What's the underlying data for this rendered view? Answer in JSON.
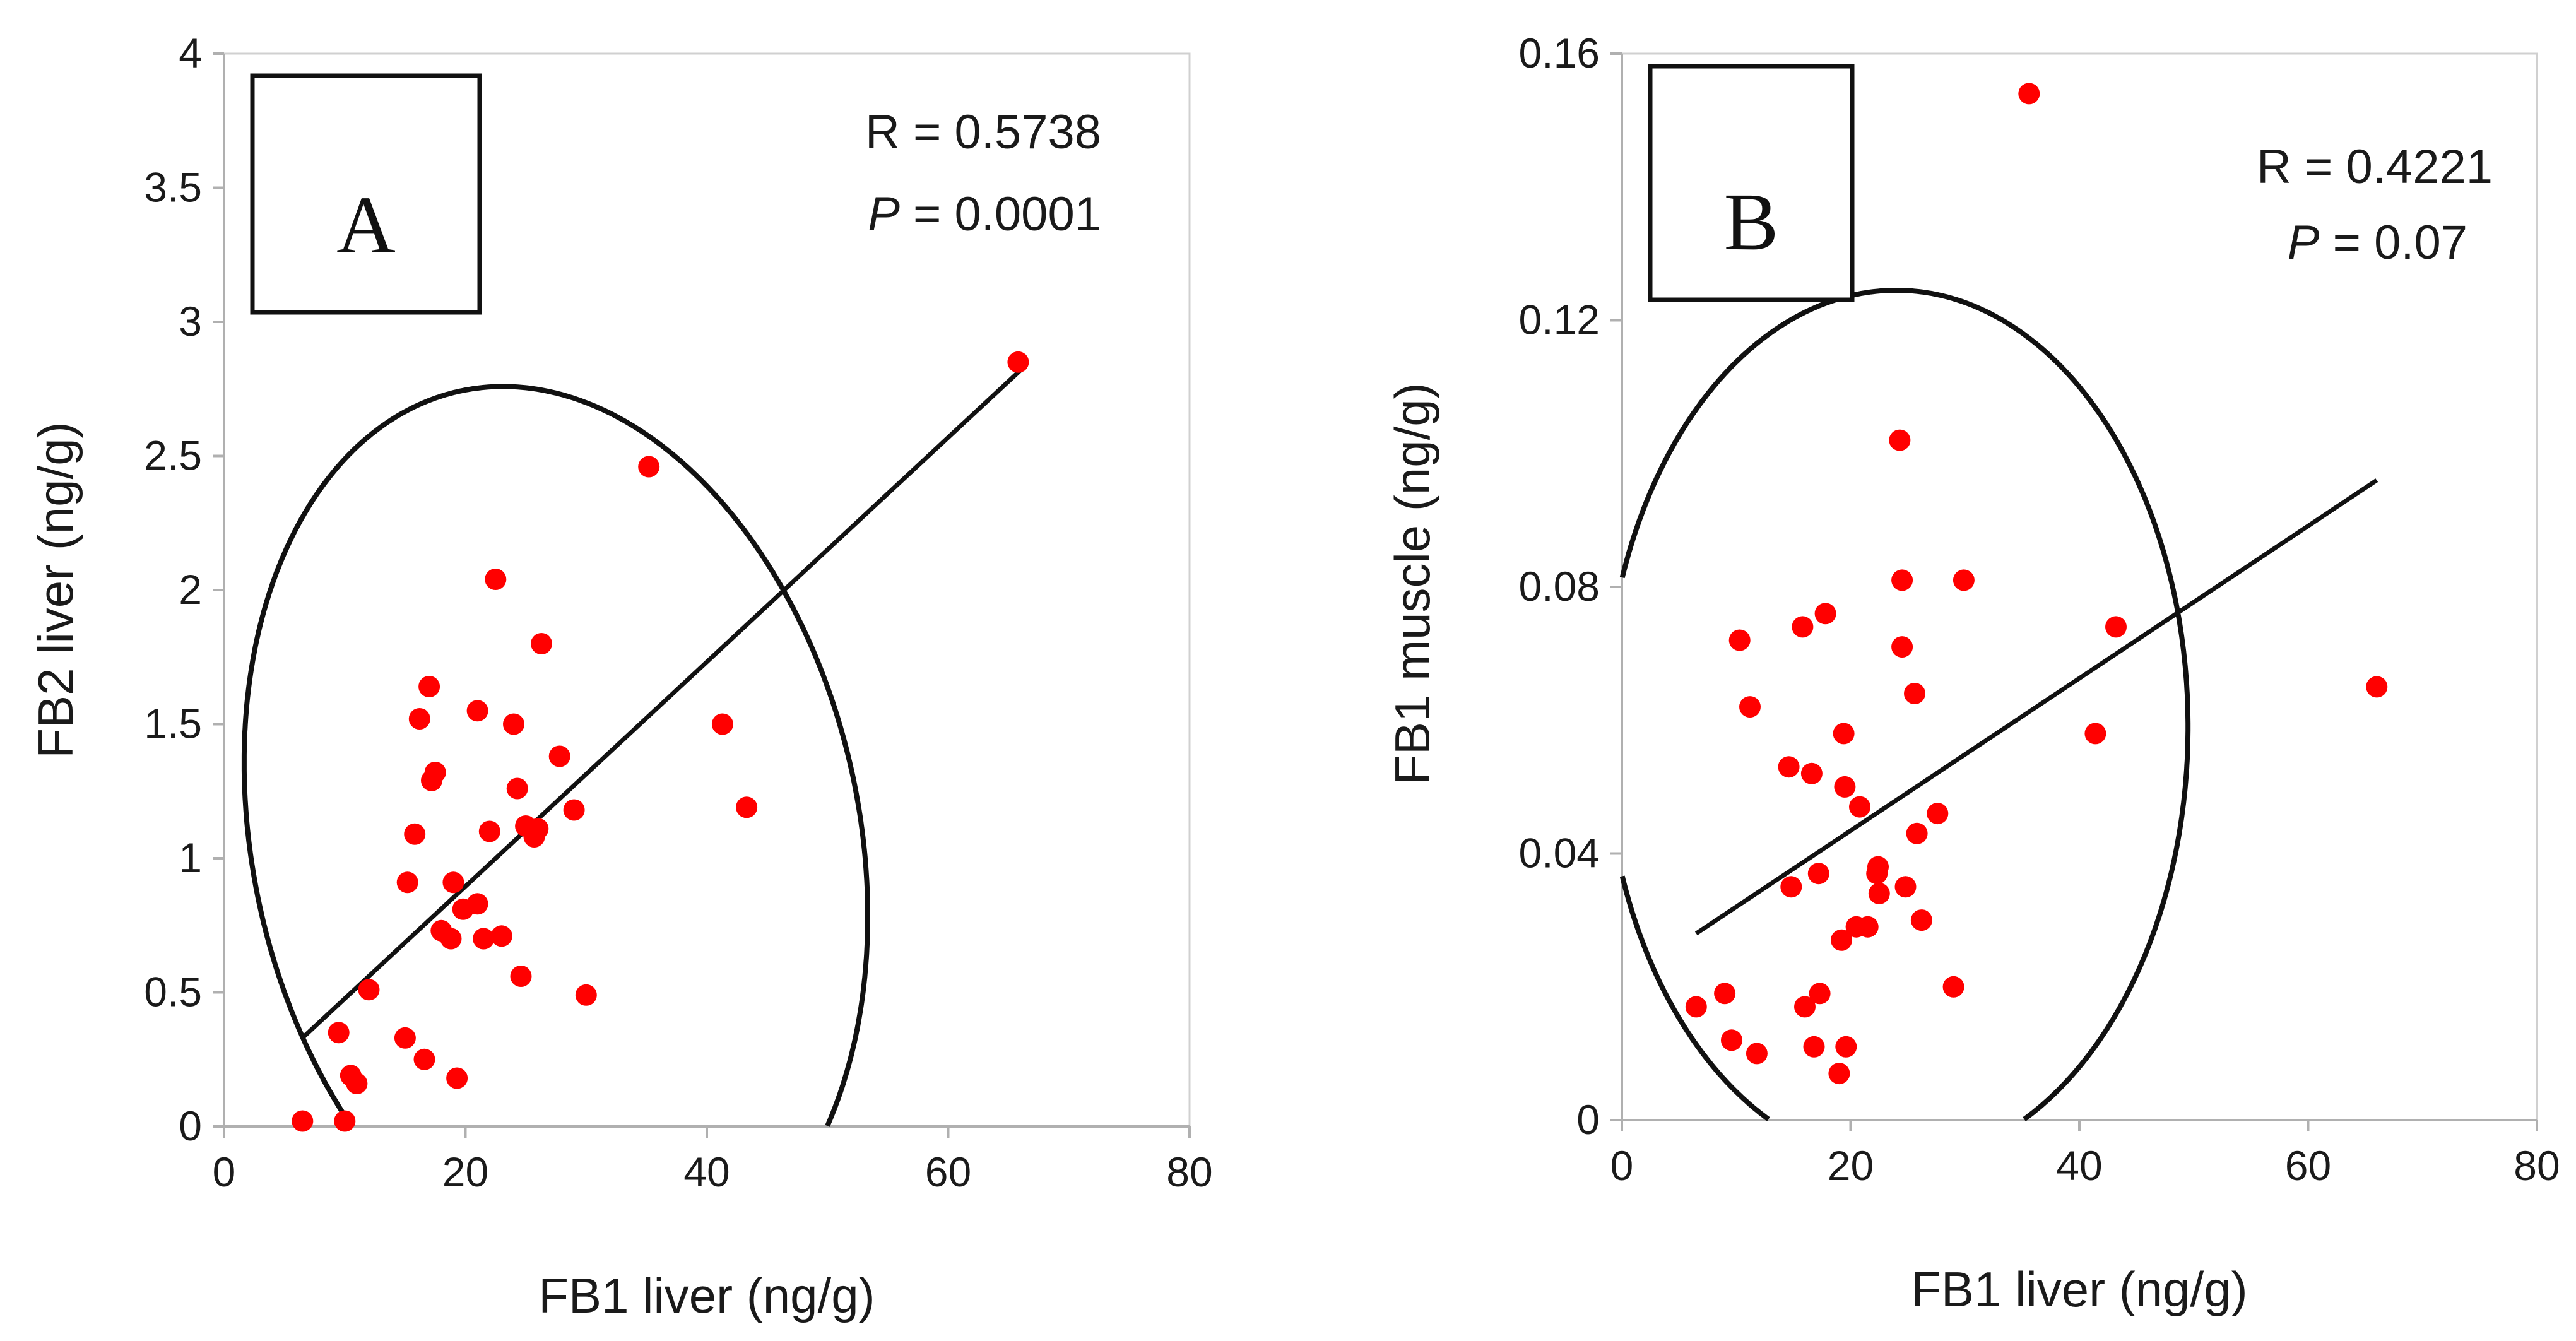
{
  "colors": {
    "point": "#ff0000",
    "line": "#111111",
    "axis": "#b0b0b0"
  },
  "chart_data": [
    {
      "panel": "A",
      "type": "scatter",
      "xlabel": "FB1 liver (ng/g)",
      "ylabel": "FB2 liver (ng/g)",
      "xlim": [
        0,
        80
      ],
      "ylim": [
        0,
        4
      ],
      "x_ticks": [
        0,
        20,
        40,
        60,
        80
      ],
      "y_ticks": [
        0,
        0.5,
        1,
        1.5,
        2,
        2.5,
        3,
        3.5,
        4
      ],
      "x_tick_labels": [
        "0",
        "20",
        "40",
        "60",
        "80"
      ],
      "y_tick_labels": [
        "0",
        "0.5",
        "1",
        "1.5",
        "2",
        "2.5",
        "3",
        "3.5",
        "4"
      ],
      "corr_r": "R = 0.5738",
      "corr_p_label": "P",
      "corr_p_rest": " = 0.0001",
      "points": [
        [
          6.5,
          0.02
        ],
        [
          9.5,
          0.35
        ],
        [
          10,
          0.02
        ],
        [
          10.5,
          0.19
        ],
        [
          11,
          0.16
        ],
        [
          12,
          0.51
        ],
        [
          15,
          0.33
        ],
        [
          15.2,
          0.91
        ],
        [
          15.8,
          1.09
        ],
        [
          16.2,
          1.52
        ],
        [
          16.6,
          0.25
        ],
        [
          17,
          1.64
        ],
        [
          17.2,
          1.29
        ],
        [
          17.5,
          1.32
        ],
        [
          18,
          0.73
        ],
        [
          18.8,
          0.7
        ],
        [
          19,
          0.91
        ],
        [
          19.3,
          0.18
        ],
        [
          19.8,
          0.81
        ],
        [
          21,
          1.55
        ],
        [
          21,
          0.83
        ],
        [
          21.5,
          0.7
        ],
        [
          22,
          1.1
        ],
        [
          22.5,
          2.04
        ],
        [
          23,
          0.71
        ],
        [
          24,
          1.5
        ],
        [
          24.3,
          1.26
        ],
        [
          24.6,
          0.56
        ],
        [
          25,
          1.12
        ],
        [
          25.7,
          1.08
        ],
        [
          26,
          1.11
        ],
        [
          26.3,
          1.8
        ],
        [
          27.8,
          1.38
        ],
        [
          29,
          1.18
        ],
        [
          30,
          0.49
        ],
        [
          35.2,
          2.46
        ],
        [
          41.3,
          1.5
        ],
        [
          43.3,
          1.19
        ],
        [
          65.8,
          2.85
        ]
      ],
      "fit_line": {
        "x": [
          6.5,
          66
        ],
        "y": [
          0.33,
          2.82
        ]
      },
      "ellipse": {
        "cx": 27.5,
        "cy": 1.07,
        "rx": 25,
        "ry": 1.72,
        "rotation_deg": 16
      }
    },
    {
      "panel": "B",
      "type": "scatter",
      "xlabel": "FB1 liver (ng/g)",
      "ylabel": "FB1 muscle (ng/g)",
      "xlim": [
        0,
        80
      ],
      "ylim": [
        0,
        0.16
      ],
      "x_ticks": [
        0,
        20,
        40,
        60,
        80
      ],
      "y_ticks": [
        0,
        0.04,
        0.08,
        0.12,
        0.16
      ],
      "x_tick_labels": [
        "0",
        "20",
        "40",
        "60",
        "80"
      ],
      "y_tick_labels": [
        "0",
        "0.04",
        "0.08",
        "0.12",
        "0.16"
      ],
      "corr_r": "R = 0.4221",
      "corr_p_label": "P",
      "corr_p_rest": " = 0.07",
      "points": [
        [
          6.5,
          0.017
        ],
        [
          9,
          0.019
        ],
        [
          9.6,
          0.012
        ],
        [
          10.3,
          0.072
        ],
        [
          11.2,
          0.062
        ],
        [
          11.8,
          0.01
        ],
        [
          14.6,
          0.053
        ],
        [
          14.8,
          0.035
        ],
        [
          15.8,
          0.074
        ],
        [
          16,
          0.017
        ],
        [
          16.6,
          0.052
        ],
        [
          16.8,
          0.011
        ],
        [
          17.2,
          0.037
        ],
        [
          17.3,
          0.019
        ],
        [
          17.8,
          0.076
        ],
        [
          19,
          0.007
        ],
        [
          19.2,
          0.027
        ],
        [
          19.4,
          0.058
        ],
        [
          19.5,
          0.05
        ],
        [
          19.6,
          0.011
        ],
        [
          20.5,
          0.029
        ],
        [
          20.8,
          0.047
        ],
        [
          21.5,
          0.029
        ],
        [
          22.3,
          0.037
        ],
        [
          22.4,
          0.038
        ],
        [
          22.5,
          0.034
        ],
        [
          24.3,
          0.102
        ],
        [
          24.5,
          0.081
        ],
        [
          24.5,
          0.071
        ],
        [
          24.8,
          0.035
        ],
        [
          25.6,
          0.064
        ],
        [
          25.8,
          0.043
        ],
        [
          26.2,
          0.03
        ],
        [
          27.6,
          0.046
        ],
        [
          29,
          0.02
        ],
        [
          29.9,
          0.081
        ],
        [
          35.6,
          0.154
        ],
        [
          41.4,
          0.058
        ],
        [
          43.2,
          0.074
        ],
        [
          66,
          0.065
        ]
      ],
      "fit_line": {
        "x": [
          6.5,
          66
        ],
        "y": [
          0.028,
          0.096
        ]
      },
      "ellipse": {
        "cx": 24,
        "cy": 0.059,
        "rx": 25.5,
        "ry": 0.0655,
        "rotation_deg": 0
      }
    }
  ]
}
